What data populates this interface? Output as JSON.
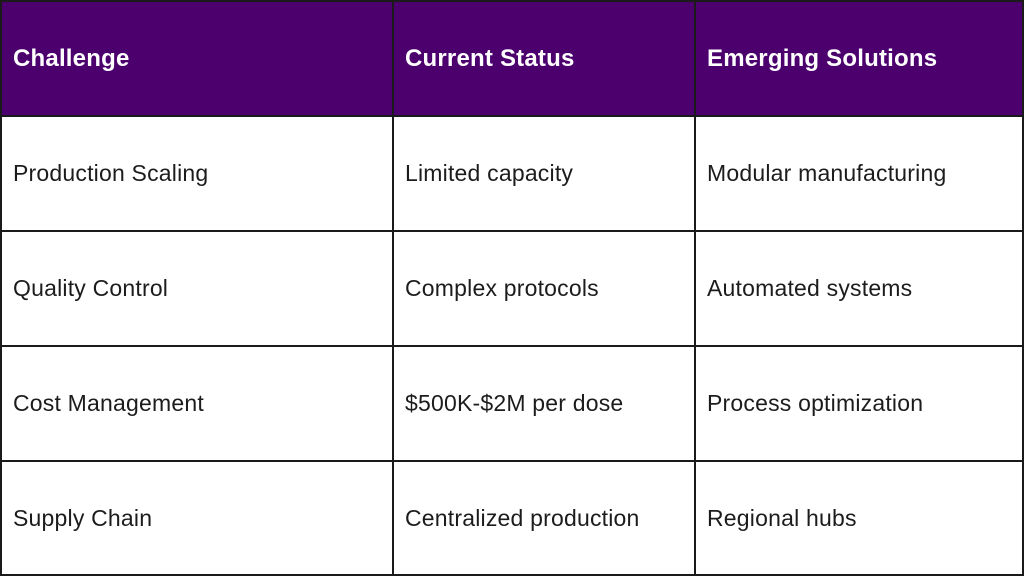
{
  "colors": {
    "header_background": "#4b006e",
    "header_text": "#ffffff",
    "border": "#1a1a1a",
    "body_text": "#1c1c1c",
    "cell_background": "#ffffff"
  },
  "table": {
    "headers": [
      "Challenge",
      "Current Status",
      "Emerging Solutions"
    ],
    "rows": [
      [
        "Production Scaling",
        "Limited capacity",
        "Modular manufacturing"
      ],
      [
        "Quality Control",
        "Complex protocols",
        "Automated systems"
      ],
      [
        "Cost Management",
        "$500K-$2M per dose",
        "Process optimization"
      ],
      [
        "Supply Chain",
        "Centralized production",
        "Regional hubs"
      ]
    ]
  }
}
